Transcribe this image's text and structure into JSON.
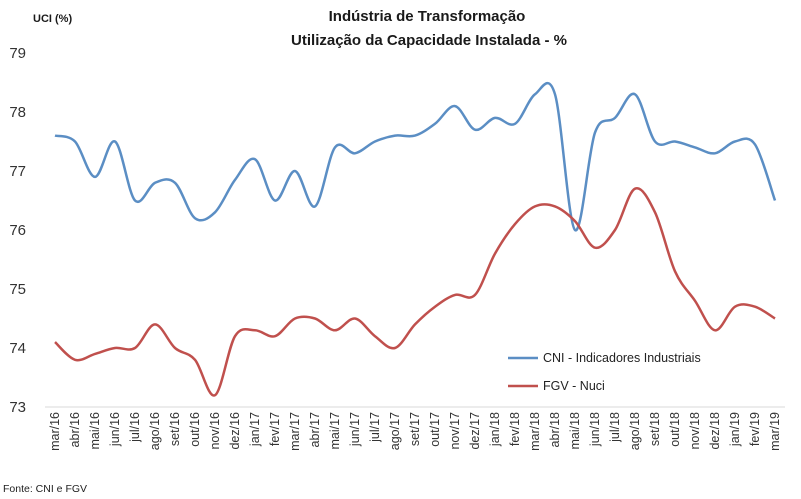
{
  "chart_data": {
    "type": "line",
    "title": "Indústria de Transformação",
    "subtitle": "Utilização da Capacidade Instalada - %",
    "ylabel": "UCI (%)",
    "xlabel": "",
    "ylim": [
      73,
      79
    ],
    "yticks": [
      73,
      74,
      75,
      76,
      77,
      78,
      79
    ],
    "grid": false,
    "legend_position": "bottom-right",
    "categories": [
      "mar/16",
      "abr/16",
      "mai/16",
      "jun/16",
      "jul/16",
      "ago/16",
      "set/16",
      "out/16",
      "nov/16",
      "dez/16",
      "jan/17",
      "fev/17",
      "mar/17",
      "abr/17",
      "mai/17",
      "jun/17",
      "jul/17",
      "ago/17",
      "set/17",
      "out/17",
      "nov/17",
      "dez/17",
      "jan/18",
      "fev/18",
      "mar/18",
      "abr/18",
      "mai/18",
      "jun/18",
      "jul/18",
      "ago/18",
      "set/18",
      "out/18",
      "nov/18",
      "dez/18",
      "jan/19",
      "fev/19",
      "mar/19"
    ],
    "series": [
      {
        "name": "CNI - Indicadores Industriais",
        "color": "#5b8ec4",
        "values": [
          77.6,
          77.5,
          76.9,
          77.5,
          76.5,
          76.8,
          76.8,
          76.2,
          76.3,
          76.85,
          77.2,
          76.5,
          77.0,
          76.4,
          77.4,
          77.3,
          77.5,
          77.6,
          77.6,
          77.8,
          78.1,
          77.7,
          77.9,
          77.8,
          78.3,
          78.3,
          76.0,
          77.65,
          77.9,
          78.3,
          77.5,
          77.5,
          77.4,
          77.3,
          77.5,
          77.45,
          76.5
        ]
      },
      {
        "name": "FGV - Nuci",
        "color": "#c0504d",
        "values": [
          74.1,
          73.8,
          73.9,
          74.0,
          74.0,
          74.4,
          74.0,
          73.8,
          73.2,
          74.2,
          74.3,
          74.2,
          74.5,
          74.5,
          74.3,
          74.5,
          74.2,
          74.0,
          74.4,
          74.7,
          74.9,
          74.9,
          75.6,
          76.1,
          76.4,
          76.4,
          76.15,
          75.7,
          76.0,
          76.7,
          76.3,
          75.3,
          74.8,
          74.3,
          74.7,
          74.7,
          74.5
        ]
      }
    ]
  },
  "source_note": "Fonte: CNI e FGV"
}
